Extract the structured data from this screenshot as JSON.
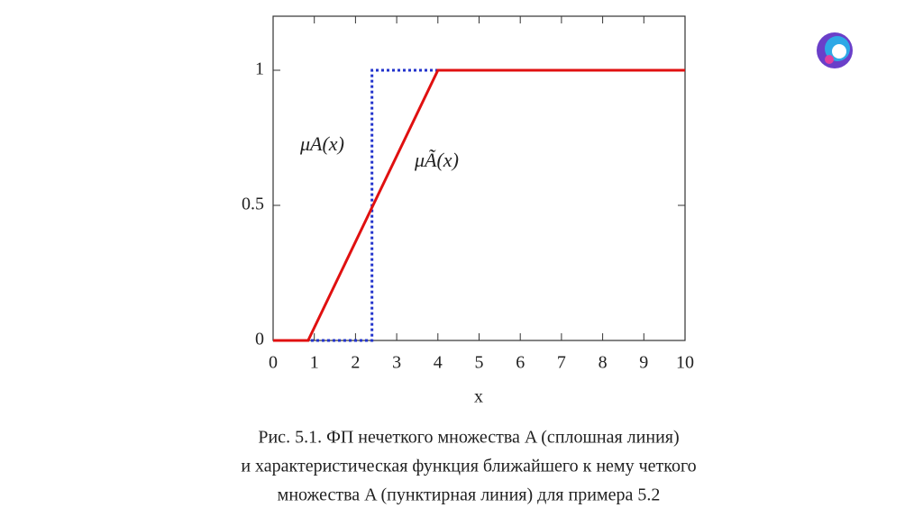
{
  "chart_data": {
    "type": "line",
    "x_label": "x",
    "series": [
      {
        "name": "μA(x)",
        "color": "#2233cc",
        "style": "dotted",
        "x": [
          0,
          2.4,
          2.4,
          10
        ],
        "values": [
          0,
          0,
          1,
          1
        ]
      },
      {
        "name": "μÃ(x)",
        "color": "#e01010",
        "style": "solid",
        "x": [
          0,
          0.85,
          4,
          10
        ],
        "values": [
          0,
          0,
          1,
          1
        ]
      }
    ],
    "xlim": [
      0,
      10
    ],
    "xticks": [
      0,
      1,
      2,
      3,
      4,
      5,
      6,
      7,
      8,
      9,
      10
    ],
    "ylim": [
      0,
      1.2
    ],
    "yticks": [
      0,
      0.5,
      1
    ],
    "grid": false,
    "caption": [
      "Рис. 5.1. ФП нечеткого множества A (сплошная линия)",
      "и характеристическая функция ближайшего к нему четкого",
      "множества A (пунктирная линия) для примера 5.2"
    ]
  }
}
